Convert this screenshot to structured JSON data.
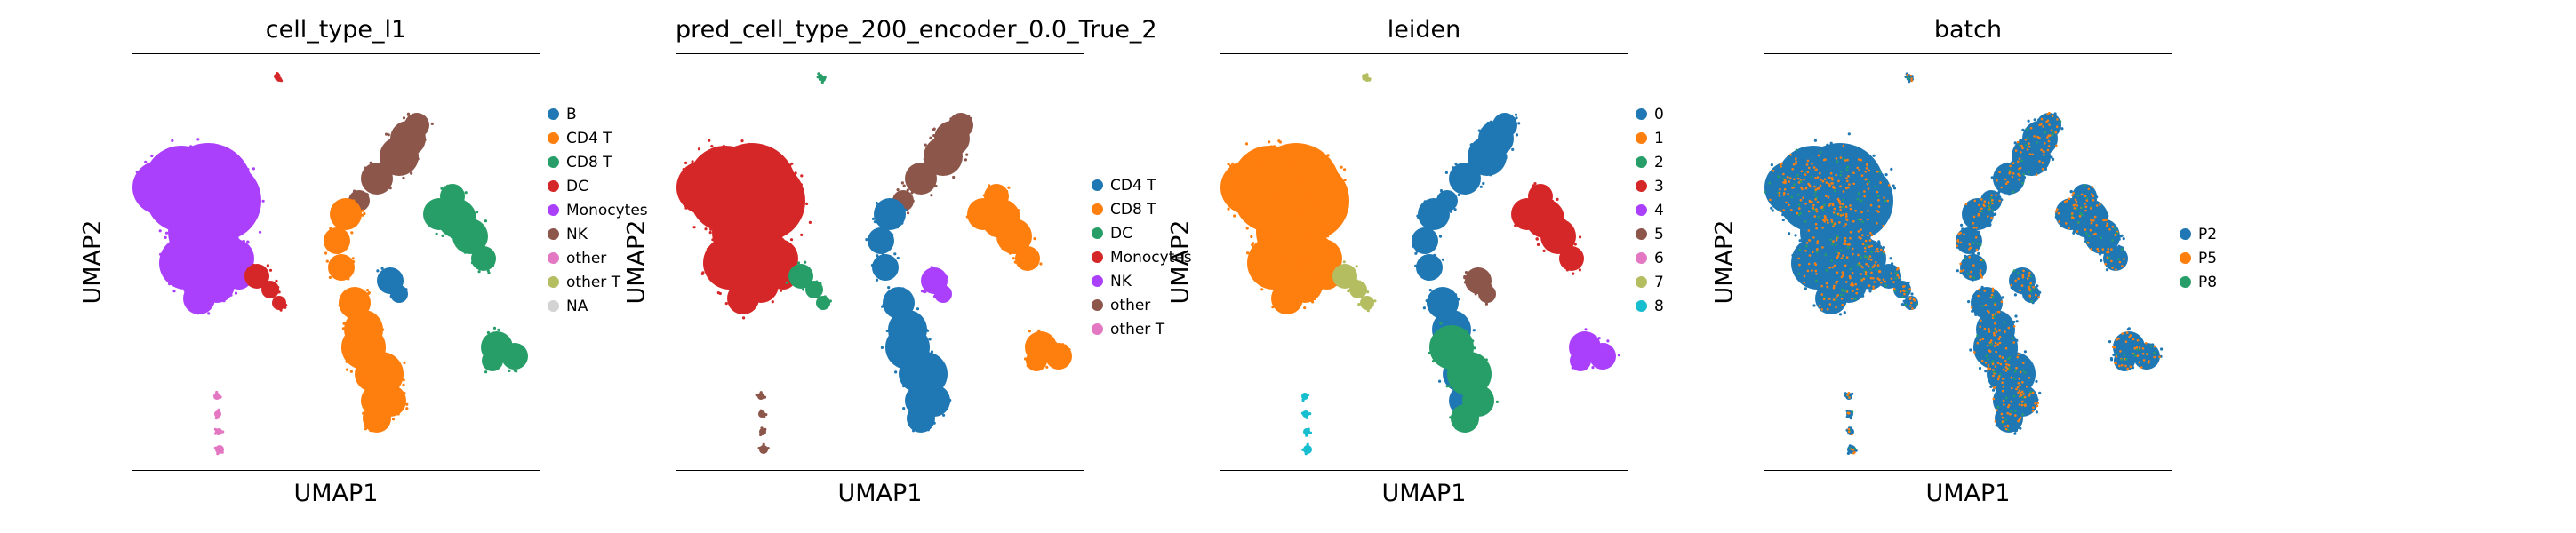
{
  "chart_data": [
    {
      "type": "scatter",
      "title": "cell_type_l1",
      "xlabel": "UMAP1",
      "ylabel": "UMAP2",
      "grid": false,
      "legend_placement": "right",
      "legend": [
        {
          "name": "B",
          "color": "#1f77b4"
        },
        {
          "name": "CD4 T",
          "color": "#ff7f0e"
        },
        {
          "name": "CD8 T",
          "color": "#279e68"
        },
        {
          "name": "DC",
          "color": "#d62728"
        },
        {
          "name": "Monocytes",
          "color": "#aa40fc"
        },
        {
          "name": "NK",
          "color": "#8c564b"
        },
        {
          "name": "other",
          "color": "#e377c2"
        },
        {
          "name": "other T",
          "color": "#b5bd61"
        },
        {
          "name": "NA",
          "color": "#d3d3d3"
        }
      ],
      "regions": {
        "mono": "#aa40fc",
        "mono_tail": "#d62728",
        "top_island": "#d62728",
        "nk_top": "#8c564b",
        "cd8_right": "#279e68",
        "b_cluster": "#1f77b4",
        "cd4_left": "#ff7f0e",
        "cd4_bottom": "#ff7f0e",
        "dc_right": "#279e68",
        "bottom_stream": "#e377c2"
      }
    },
    {
      "type": "scatter",
      "title": "pred_cell_type_200_encoder_0.0_True_2",
      "xlabel": "UMAP1",
      "ylabel": "UMAP2",
      "grid": false,
      "legend_placement": "right",
      "legend": [
        {
          "name": "CD4 T",
          "color": "#1f77b4"
        },
        {
          "name": "CD8 T",
          "color": "#ff7f0e"
        },
        {
          "name": "DC",
          "color": "#279e68"
        },
        {
          "name": "Monocytes",
          "color": "#d62728"
        },
        {
          "name": "NK",
          "color": "#aa40fc"
        },
        {
          "name": "other",
          "color": "#8c564b"
        },
        {
          "name": "other T",
          "color": "#e377c2"
        }
      ],
      "regions": {
        "mono": "#d62728",
        "mono_tail": "#279e68",
        "top_island": "#279e68",
        "nk_top": "#8c564b",
        "cd8_right": "#ff7f0e",
        "b_cluster": "#aa40fc",
        "cd4_left": "#1f77b4",
        "cd4_bottom": "#1f77b4",
        "dc_right": "#ff7f0e",
        "bottom_stream": "#8c564b"
      }
    },
    {
      "type": "scatter",
      "title": "leiden",
      "xlabel": "UMAP1",
      "ylabel": "UMAP2",
      "grid": false,
      "legend_placement": "right",
      "legend": [
        {
          "name": "0",
          "color": "#1f77b4"
        },
        {
          "name": "1",
          "color": "#ff7f0e"
        },
        {
          "name": "2",
          "color": "#279e68"
        },
        {
          "name": "3",
          "color": "#d62728"
        },
        {
          "name": "4",
          "color": "#aa40fc"
        },
        {
          "name": "5",
          "color": "#8c564b"
        },
        {
          "name": "6",
          "color": "#e377c2"
        },
        {
          "name": "7",
          "color": "#b5bd61"
        },
        {
          "name": "8",
          "color": "#17becf"
        }
      ],
      "regions": {
        "mono": "#ff7f0e",
        "mono_tail": "#b5bd61",
        "top_island": "#b5bd61",
        "nk_top": "#1f77b4",
        "cd8_right": "#d62728",
        "b_cluster": "#8c564b",
        "cd4_left": "#1f77b4",
        "cd4_bottom": "#279e68",
        "dc_right": "#aa40fc",
        "bottom_stream": "#17becf"
      }
    },
    {
      "type": "scatter",
      "title": "batch",
      "xlabel": "UMAP1",
      "ylabel": "UMAP2",
      "grid": false,
      "legend_placement": "right",
      "legend": [
        {
          "name": "P2",
          "color": "#1f77b4"
        },
        {
          "name": "P5",
          "color": "#ff7f0e"
        },
        {
          "name": "P8",
          "color": "#279e68"
        }
      ],
      "regions": {
        "mono": "#1f77b4",
        "mono_tail": "#1f77b4",
        "top_island": "#1f77b4",
        "nk_top": "#1f77b4",
        "cd8_right": "#1f77b4",
        "b_cluster": "#1f77b4",
        "cd4_left": "#1f77b4",
        "cd4_bottom": "#1f77b4",
        "dc_right": "#1f77b4",
        "bottom_stream": "#1f77b4"
      },
      "speckle": [
        "#ff7f0e",
        "#279e68"
      ]
    }
  ]
}
